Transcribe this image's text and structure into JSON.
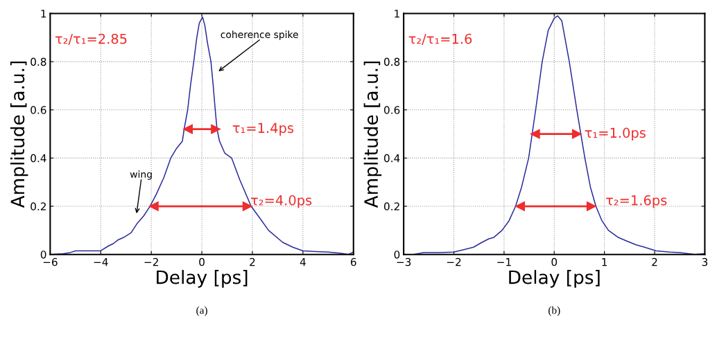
{
  "chart_data": [
    {
      "type": "line",
      "title": "(a)",
      "xlabel": "Delay [ps]",
      "ylabel": "Amplitude [a.u.]",
      "xlim": [
        -6,
        6
      ],
      "ylim": [
        0,
        1
      ],
      "xticks": [
        {
          "value": -6,
          "label": "−6"
        },
        {
          "value": -4,
          "label": "−4"
        },
        {
          "value": -2,
          "label": "−2"
        },
        0,
        2,
        4,
        6
      ],
      "yticks": [
        0,
        0.2,
        0.4,
        0.6,
        0.8,
        1
      ],
      "grid": true,
      "series": [
        {
          "color": "#2b2b9c",
          "x": [
            -6,
            -5.5,
            -5.2,
            -5,
            -4.5,
            -4,
            -3.7,
            -3.5,
            -3.32,
            -3.1,
            -2.8,
            -2.55,
            -2.3,
            -2.05,
            -1.8,
            -1.5,
            -1.23,
            -1.0,
            -0.77,
            -0.7,
            -0.56,
            -0.45,
            -0.32,
            -0.2,
            -0.1,
            0.03,
            0.12,
            0.22,
            0.36,
            0.45,
            0.53,
            0.6,
            0.7,
            0.91,
            1.18,
            1.5,
            1.95,
            2.3,
            2.64,
            3.2,
            3.6,
            4.0,
            4.5,
            5.0,
            5.5,
            5.8,
            6
          ],
          "values": [
            0,
            0.003,
            0.008,
            0.015,
            0.015,
            0.015,
            0.035,
            0.045,
            0.06,
            0.07,
            0.09,
            0.13,
            0.16,
            0.2,
            0.25,
            0.32,
            0.4,
            0.44,
            0.47,
            0.52,
            0.6,
            0.7,
            0.8,
            0.9,
            0.96,
            0.985,
            0.95,
            0.88,
            0.8,
            0.7,
            0.6,
            0.52,
            0.47,
            0.42,
            0.4,
            0.31,
            0.2,
            0.15,
            0.1,
            0.05,
            0.03,
            0.015,
            0.012,
            0.01,
            0.005,
            0,
            0.01
          ]
        },
        {
          "color": "#ee2d2d",
          "marker": "triangle",
          "x": [
            -0.55,
            0.55
          ],
          "values": [
            0.52,
            0.52
          ]
        },
        {
          "color": "#ee2d2d",
          "marker": "triangle",
          "x": [
            -1.9,
            1.8
          ],
          "values": [
            0.2,
            0.2
          ]
        }
      ],
      "annotations": [
        "τ₂/τ₁=2.85",
        "τ₁=1.4ps",
        "τ₂=4.0ps",
        "coherence spike",
        "wing"
      ]
    },
    {
      "type": "line",
      "title": "(b)",
      "xlabel": "Delay [ps]",
      "ylabel": "Amplitude [a.u.]",
      "xlim": [
        -3,
        3
      ],
      "ylim": [
        0,
        1
      ],
      "xticks": [
        {
          "value": -3,
          "label": "−3"
        },
        {
          "value": -2,
          "label": "−2"
        },
        {
          "value": -1,
          "label": "−1"
        },
        0,
        1,
        2,
        3
      ],
      "yticks": [
        0,
        0.2,
        0.4,
        0.6,
        0.8,
        1
      ],
      "grid": true,
      "series": [
        {
          "color": "#2b2b9c",
          "x": [
            -3,
            -2.8,
            -2.6,
            -2.3,
            -2.0,
            -1.8,
            -1.61,
            -1.44,
            -1.3,
            -1.21,
            -1.04,
            -0.9,
            -0.77,
            -0.65,
            -0.51,
            -0.37,
            -0.24,
            -0.12,
            0.0,
            0.07,
            0.15,
            0.3,
            0.45,
            0.61,
            0.72,
            0.83,
            0.95,
            1.08,
            1.28,
            1.45,
            1.63,
            1.8,
            2.03,
            2.3,
            2.5,
            2.8,
            3
          ],
          "values": [
            0,
            0,
            0.008,
            0.008,
            0.01,
            0.02,
            0.03,
            0.05,
            0.065,
            0.07,
            0.1,
            0.14,
            0.2,
            0.28,
            0.4,
            0.6,
            0.8,
            0.93,
            0.98,
            0.99,
            0.97,
            0.8,
            0.6,
            0.4,
            0.28,
            0.2,
            0.14,
            0.1,
            0.07,
            0.055,
            0.04,
            0.03,
            0.015,
            0.01,
            0.008,
            0,
            0.003
          ]
        },
        {
          "color": "#ee2d2d",
          "marker": "triangle",
          "x": [
            -0.38,
            0.45
          ],
          "values": [
            0.5,
            0.5
          ]
        },
        {
          "color": "#ee2d2d",
          "marker": "triangle",
          "x": [
            -0.68,
            0.74
          ],
          "values": [
            0.2,
            0.2
          ]
        }
      ],
      "annotations": [
        "τ₂/τ₁=1.6",
        "τ₁=1.0ps",
        "τ₂=1.6ps"
      ]
    }
  ]
}
